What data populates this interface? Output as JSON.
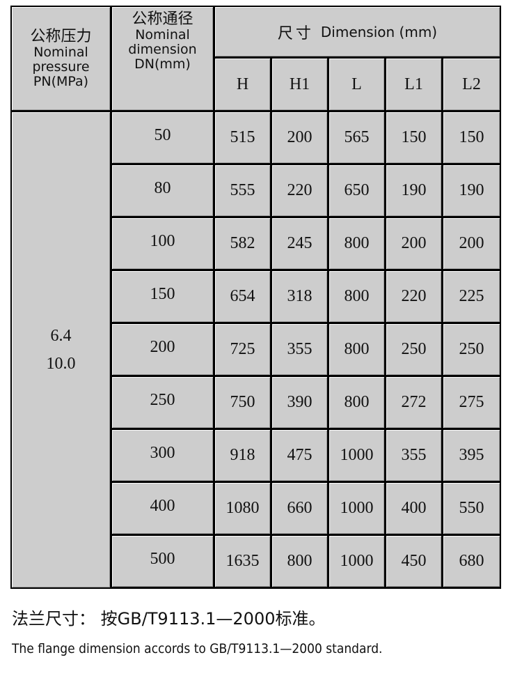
{
  "header": {
    "pn_zh": "公称压力",
    "pn_en1": "Nominal",
    "pn_en2": "pressure",
    "pn_en3": "PN(MPa)",
    "dn_zh": "公称通径",
    "dn_en1": "Nominal",
    "dn_en2": "dimension",
    "dn_en3": "DN(mm)",
    "dim_zh": "尺寸",
    "dim_en": "Dimension (mm)",
    "columns": [
      "H",
      "H1",
      "L",
      "L1",
      "L2"
    ]
  },
  "pressure": [
    "6.4",
    "10.0"
  ],
  "rows": [
    {
      "dn": "50",
      "v": [
        "515",
        "200",
        "565",
        "150",
        "150"
      ]
    },
    {
      "dn": "80",
      "v": [
        "555",
        "220",
        "650",
        "190",
        "190"
      ]
    },
    {
      "dn": "100",
      "v": [
        "582",
        "245",
        "800",
        "200",
        "200"
      ]
    },
    {
      "dn": "150",
      "v": [
        "654",
        "318",
        "800",
        "220",
        "225"
      ]
    },
    {
      "dn": "200",
      "v": [
        "725",
        "355",
        "800",
        "250",
        "250"
      ]
    },
    {
      "dn": "250",
      "v": [
        "750",
        "390",
        "800",
        "272",
        "275"
      ]
    },
    {
      "dn": "300",
      "v": [
        "918",
        "475",
        "1000",
        "355",
        "395"
      ]
    },
    {
      "dn": "400",
      "v": [
        "1080",
        "660",
        "1000",
        "400",
        "550"
      ]
    },
    {
      "dn": "500",
      "v": [
        "1635",
        "800",
        "1000",
        "450",
        "680"
      ]
    }
  ],
  "notes": {
    "zh": "法兰尺寸： 按GB/T9113.1—2000标准。",
    "en": "The flange dimension accords to GB/T9113.1—2000 standard."
  }
}
